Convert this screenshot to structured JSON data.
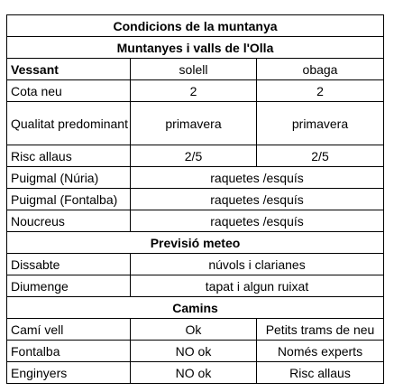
{
  "title": "Condicions de la muntanya",
  "area_title": "Muntanyes i valls de l'Olla",
  "slope_header": {
    "label": "Vessant",
    "sunny": "solell",
    "shady": "obaga"
  },
  "snow_rows": [
    {
      "label": "Cota neu",
      "sunny": "2",
      "shady": "2"
    },
    {
      "label": "Qualitat predominant",
      "sunny": "primavera",
      "shady": "primavera"
    },
    {
      "label": "Risc allaus",
      "sunny": "2/5",
      "shady": "2/5"
    }
  ],
  "peaks": [
    {
      "label": "Puigmal (Núria)",
      "value": "raquetes /esquís"
    },
    {
      "label": "Puigmal (Fontalba)",
      "value": "raquetes /esquís"
    },
    {
      "label": "Noucreus",
      "value": "raquetes /esquís"
    }
  ],
  "forecast_title": "Previsió meteo",
  "forecast": [
    {
      "day": "Dissabte",
      "value": "núvols i clarianes"
    },
    {
      "day": "Diumenge",
      "value": "tapat i algun ruixat"
    }
  ],
  "paths_title": "Camins",
  "paths": [
    {
      "name": "Camí vell",
      "status": "Ok",
      "note": "Petits trams de neu"
    },
    {
      "name": "Fontalba",
      "status": "NO ok",
      "note": "Només experts"
    },
    {
      "name": "Enginyers",
      "status": "NO ok",
      "note": "Risc allaus"
    }
  ]
}
